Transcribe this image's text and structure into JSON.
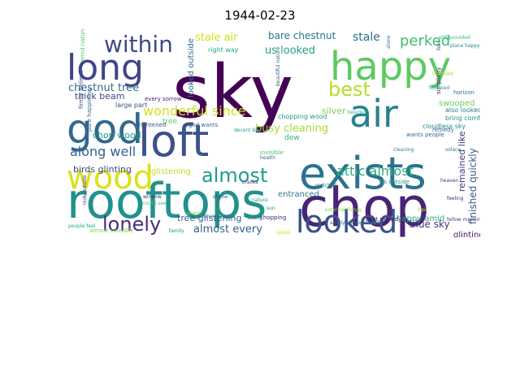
{
  "figure": {
    "title": "1944-02-23"
  },
  "wordcloud": {
    "words": [
      {
        "text": "sky",
        "color": "#440154"
      },
      {
        "text": "loft",
        "color": "#3b528b"
      },
      {
        "text": "exists",
        "color": "#2c728e"
      },
      {
        "text": "rooftops",
        "color": "#21918c"
      },
      {
        "text": "chop",
        "color": "#482475"
      },
      {
        "text": "happy",
        "color": "#5ec962"
      },
      {
        "text": "long",
        "color": "#414487"
      },
      {
        "text": "god",
        "color": "#31688e"
      },
      {
        "text": "air",
        "color": "#26828e"
      },
      {
        "text": "wood",
        "color": "#d8e219"
      },
      {
        "text": "looked",
        "color": "#3b528b"
      },
      {
        "text": "within",
        "color": "#3e4989"
      },
      {
        "text": "almost",
        "color": "#1f9e89"
      },
      {
        "text": "lonely",
        "color": "#472d7b"
      },
      {
        "text": "best",
        "color": "#b5de2b"
      },
      {
        "text": "wonderful since",
        "color": "#d2e21b"
      },
      {
        "text": "along well",
        "color": "#35608d"
      },
      {
        "text": "attic almost",
        "color": "#29af7f"
      },
      {
        "text": "perked",
        "color": "#3dbc74"
      },
      {
        "text": "stale air",
        "color": "#d0e11c"
      },
      {
        "text": "busy cleaning",
        "color": "#a8db34"
      },
      {
        "text": "bare chestnut",
        "color": "#2a788e"
      },
      {
        "text": "us looked",
        "color": "#20a386"
      },
      {
        "text": "stale",
        "color": "#2d718e"
      },
      {
        "text": "chestnut tree",
        "color": "#2e6e8e"
      },
      {
        "text": "almost every",
        "color": "#355f8d"
      },
      {
        "text": "tree glistening",
        "color": "#33638d"
      },
      {
        "text": "blue sky",
        "color": "#46337f"
      },
      {
        "text": "finished quickly",
        "color": "#38598c"
      },
      {
        "text": "remained like",
        "color": "#453781"
      },
      {
        "text": "birds glinting",
        "color": "#3f4788"
      },
      {
        "text": "chop wood",
        "color": "#1f9a8a"
      },
      {
        "text": "thick beam",
        "color": "#404688"
      },
      {
        "text": "glistening",
        "color": "#c2df23"
      },
      {
        "text": "looked outside",
        "color": "#31688e"
      },
      {
        "text": "silver",
        "color": "#7fd34e"
      },
      {
        "text": "swooped",
        "color": "#6ece58"
      },
      {
        "text": "also looked",
        "color": "#287d8e"
      },
      {
        "text": "bring comfort",
        "color": "#1f958b"
      },
      {
        "text": "cloudless sky",
        "color": "#25848e"
      },
      {
        "text": "happy amid",
        "color": "#25ac82"
      },
      {
        "text": "glinting",
        "color": "#471063"
      },
      {
        "text": "entranced",
        "color": "#2a778e"
      },
      {
        "text": "every sorrow",
        "color": "#481a6c"
      },
      {
        "text": "chopping wood",
        "color": "#1e9b8a"
      },
      {
        "text": "large part",
        "color": "#3c4f8a"
      },
      {
        "text": "right way",
        "color": "#22a785"
      },
      {
        "text": "god wants",
        "color": "#355e8d"
      },
      {
        "text": "simplicity",
        "color": "#48186a"
      },
      {
        "text": "horizon",
        "color": "#2b748e"
      },
      {
        "text": "dew",
        "color": "#2db27d"
      },
      {
        "text": "invisible",
        "color": "#40bd72"
      },
      {
        "text": "remedy",
        "color": "#31678e"
      },
      {
        "text": "chopping",
        "color": "#482173"
      },
      {
        "text": "tree",
        "color": "#56c667"
      },
      {
        "text": "wants people",
        "color": "#2f6b8e"
      },
      {
        "text": "best remedy",
        "color": "#482878"
      },
      {
        "text": "frightened",
        "color": "#3b528b"
      },
      {
        "text": "amid nature",
        "color": "#52c569"
      },
      {
        "text": "firmly believe",
        "color": "#3e4a89"
      },
      {
        "text": "pure happiness",
        "color": "#2e6d8e"
      },
      {
        "text": "almost invisible",
        "color": "#7ad151"
      },
      {
        "text": "us outside",
        "color": "#1fa088"
      },
      {
        "text": "look outside",
        "color": "#433e85"
      },
      {
        "text": "still provided",
        "color": "#38b977"
      },
      {
        "text": "place happy",
        "color": "#23898e"
      },
      {
        "text": "unhappy",
        "color": "#a5db36"
      },
      {
        "text": "beautiful nature",
        "color": "#32658e"
      },
      {
        "text": "nature",
        "color": "#1fa287"
      },
      {
        "text": "solace",
        "color": "#2a768e"
      },
      {
        "text": "cleaning",
        "color": "#277f8e"
      },
      {
        "text": "feeling",
        "color": "#482677"
      },
      {
        "text": "people feel",
        "color": "#22a884"
      },
      {
        "text": "feel",
        "color": "#3f4889"
      },
      {
        "text": "free",
        "color": "#9bd93c"
      },
      {
        "text": "sitting",
        "color": "#2b758e"
      },
      {
        "text": "alone",
        "color": "#2c738e"
      },
      {
        "text": "heaven",
        "color": "#46327e"
      },
      {
        "text": "matched",
        "color": "#27808e"
      },
      {
        "text": "besides",
        "color": "#3aba76"
      },
      {
        "text": "window",
        "color": "#472c7a"
      },
      {
        "text": "could see",
        "color": "#4ac16d"
      },
      {
        "text": "favorite spot",
        "color": "#2c728e"
      },
      {
        "text": "speak",
        "color": "#d5e21a"
      },
      {
        "text": "share",
        "color": "#7cd250"
      },
      {
        "text": "health",
        "color": "#2f6c8e"
      },
      {
        "text": "sun",
        "color": "#20a486"
      },
      {
        "text": "cracks",
        "color": "#46307e"
      },
      {
        "text": "decent boy",
        "color": "#1f988b"
      },
      {
        "text": "shone",
        "color": "#3c4f8a"
      },
      {
        "text": "family",
        "color": "#24878e"
      },
      {
        "text": "amply compensated",
        "color": "#2d708e"
      },
      {
        "text": "external things",
        "color": "#86d549"
      },
      {
        "text": "followed",
        "color": "#1f9f88"
      },
      {
        "text": "fellow mankind",
        "color": "#443983"
      }
    ]
  }
}
